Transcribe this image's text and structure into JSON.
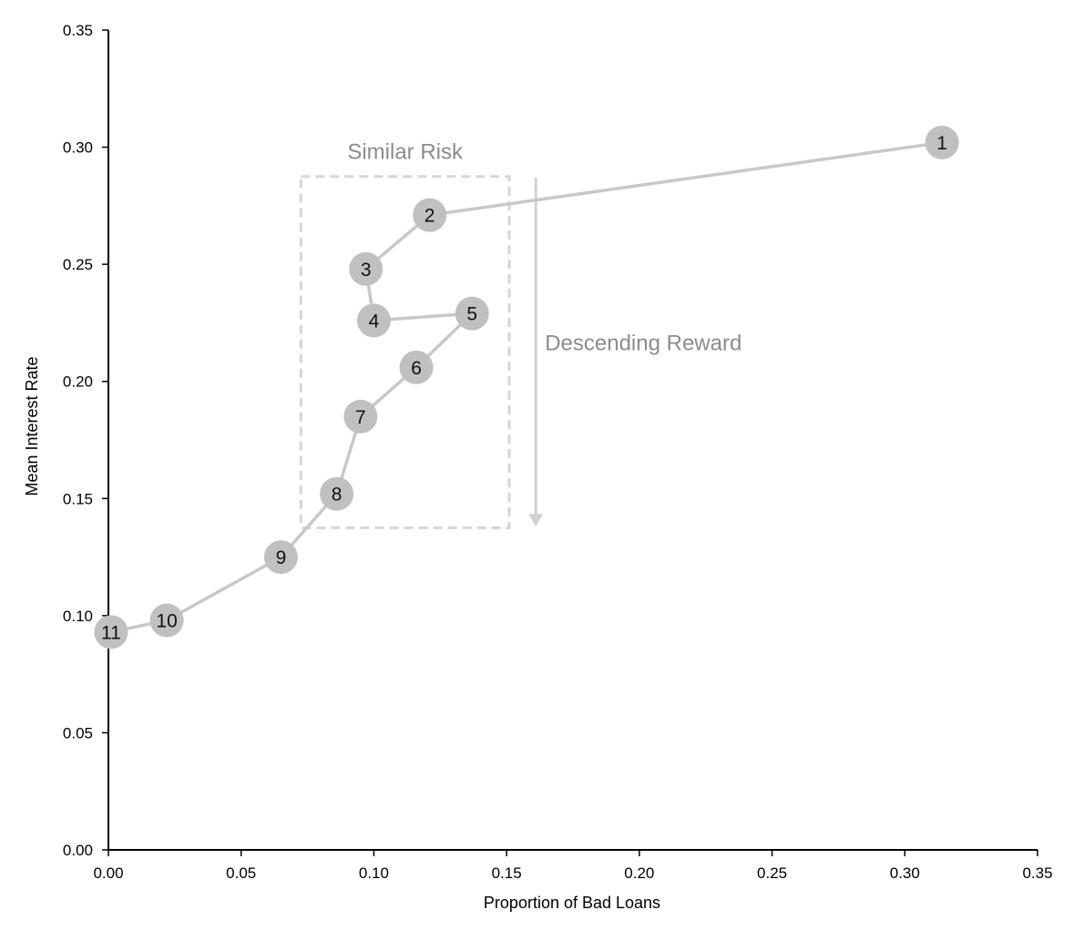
{
  "chart_data": {
    "type": "line",
    "xlabel": "Proportion of Bad Loans",
    "ylabel": "Mean Interest Rate",
    "xlim": [
      0,
      0.35
    ],
    "ylim": [
      0,
      0.35
    ],
    "x_ticks": [
      "0.00",
      "0.05",
      "0.10",
      "0.15",
      "0.20",
      "0.25",
      "0.30",
      "0.35"
    ],
    "y_ticks": [
      "0.00",
      "0.05",
      "0.10",
      "0.15",
      "0.20",
      "0.25",
      "0.30",
      "0.35"
    ],
    "x_tick_values": [
      0,
      0.05,
      0.1,
      0.15,
      0.2,
      0.25,
      0.3,
      0.35
    ],
    "y_tick_values": [
      0,
      0.05,
      0.1,
      0.15,
      0.2,
      0.25,
      0.3,
      0.35
    ],
    "grid": false,
    "point_color": "#c0c0c0",
    "line_color": "#c8c8c8",
    "points": [
      {
        "label": "1",
        "x": 0.314,
        "y": 0.302
      },
      {
        "label": "2",
        "x": 0.121,
        "y": 0.271
      },
      {
        "label": "3",
        "x": 0.097,
        "y": 0.248
      },
      {
        "label": "4",
        "x": 0.1,
        "y": 0.226
      },
      {
        "label": "5",
        "x": 0.137,
        "y": 0.229
      },
      {
        "label": "6",
        "x": 0.116,
        "y": 0.206
      },
      {
        "label": "7",
        "x": 0.095,
        "y": 0.185
      },
      {
        "label": "8",
        "x": 0.086,
        "y": 0.152
      },
      {
        "label": "9",
        "x": 0.065,
        "y": 0.125
      },
      {
        "label": "10",
        "x": 0.022,
        "y": 0.098
      },
      {
        "label": "11",
        "x": 0.001,
        "y": 0.093
      }
    ],
    "annotations": {
      "similar_risk": {
        "text": "Similar Risk",
        "x_range": [
          0.0725,
          0.151
        ],
        "y_range": [
          0.1375,
          0.2875
        ]
      },
      "descending_reward": {
        "text": "Descending Reward",
        "arrow_x": 0.161,
        "arrow_from_y": 0.287,
        "arrow_to_y": 0.138
      }
    }
  }
}
